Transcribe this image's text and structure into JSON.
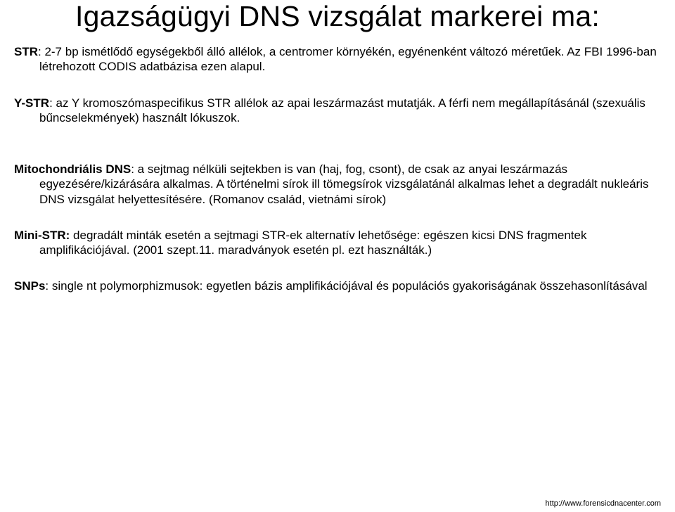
{
  "title": "Igazságügyi DNS vizsgálat markerei ma:",
  "p1_label": "STR",
  "p1_text": ": 2-7 bp ismétlődő egységekből álló allélok, a centromer környékén, egyénenként változó méretűek. Az FBI 1996-ban létrehozott CODIS adatbázisa ezen alapul.",
  "p2_label": "Y-STR",
  "p2_text": ": az Y kromoszómaspecifikus STR allélok az apai leszármazást mutatják. A férfi nem megállapításánál (szexuális bűncselekmények) használt lókuszok.",
  "p3_label": "Mitochondriális DNS",
  "p3_text": ": a sejtmag nélküli sejtekben is van (haj, fog, csont), de csak az anyai leszármazás egyezésére/kizárására alkalmas. A történelmi sírok ill tömegsírok vizsgálatánál alkalmas lehet a degradált nukleáris DNS vizsgálat helyettesítésére. (Romanov család, vietnámi sírok)",
  "p4_label": "Mini-STR:",
  "p4_text": " degradált minták esetén a sejtmagi STR-ek alternatív lehetősége: egészen kicsi DNS fragmentek amplifikációjával. (2001 szept.11. maradványok esetén pl. ezt használták.)",
  "p5_label": "SNPs",
  "p5_text": ": single nt polymorphizmusok: egyetlen bázis amplifikációjával és populációs gyakoriságának összehasonlításával",
  "footer": "http://www.forensicdnacenter.com"
}
